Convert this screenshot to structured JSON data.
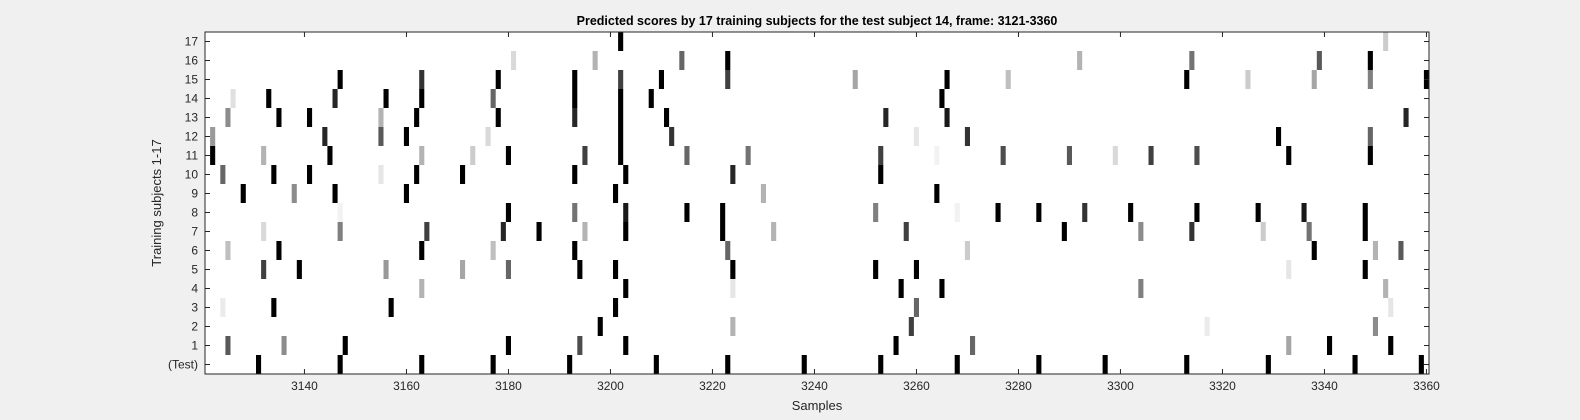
{
  "chart_data": {
    "type": "heatmap",
    "title": "Predicted scores by 17 training subjects for the test subject 14, frame: 3121-3360",
    "xlabel": "Samples",
    "ylabel": "Training subjects 1-17",
    "xlim": [
      3121,
      3360
    ],
    "x_ticks": [
      3140,
      3160,
      3180,
      3200,
      3220,
      3240,
      3260,
      3280,
      3300,
      3320,
      3340,
      3360
    ],
    "y_tick_labels": [
      "(Test)",
      "1",
      "2",
      "3",
      "4",
      "5",
      "6",
      "7",
      "8",
      "9",
      "10",
      "11",
      "12",
      "13",
      "14",
      "15",
      "16",
      "17"
    ],
    "colormap": "gray (white = 0, black = 1)",
    "grid": false,
    "rows": [
      {
        "label": "(Test)",
        "points": [
          [
            3131,
            1
          ],
          [
            3147,
            1
          ],
          [
            3163,
            1
          ],
          [
            3177,
            1
          ],
          [
            3192,
            1
          ],
          [
            3209,
            1
          ],
          [
            3223,
            1
          ],
          [
            3238,
            1
          ],
          [
            3253,
            1
          ],
          [
            3268,
            1
          ],
          [
            3284,
            1
          ],
          [
            3297,
            1
          ],
          [
            3313,
            1
          ],
          [
            3329,
            1
          ],
          [
            3346,
            1
          ],
          [
            3359,
            1
          ]
        ]
      },
      {
        "label": "1",
        "points": [
          [
            3125,
            0.65
          ],
          [
            3136,
            0.45
          ],
          [
            3148,
            1
          ],
          [
            3180,
            1
          ],
          [
            3194,
            0.7
          ],
          [
            3203,
            1
          ],
          [
            3256,
            1
          ],
          [
            3271,
            0.6
          ],
          [
            3333,
            0.35
          ],
          [
            3341,
            1
          ],
          [
            3353,
            1
          ]
        ]
      },
      {
        "label": "2",
        "points": [
          [
            3198,
            1
          ],
          [
            3224,
            0.3
          ],
          [
            3259,
            0.75
          ],
          [
            3317,
            0.08
          ],
          [
            3350,
            0.45
          ]
        ]
      },
      {
        "label": "3",
        "points": [
          [
            3124,
            0.08
          ],
          [
            3134,
            1
          ],
          [
            3157,
            1
          ],
          [
            3201,
            1
          ],
          [
            3260,
            0.6
          ],
          [
            3353,
            0.1
          ]
        ]
      },
      {
        "label": "4",
        "points": [
          [
            3163,
            0.3
          ],
          [
            3203,
            1
          ],
          [
            3224,
            0.1
          ],
          [
            3257,
            1
          ],
          [
            3265,
            1
          ],
          [
            3304,
            0.5
          ],
          [
            3352,
            0.3
          ]
        ]
      },
      {
        "label": "5",
        "points": [
          [
            3132,
            0.75
          ],
          [
            3139,
            1
          ],
          [
            3156,
            0.4
          ],
          [
            3171,
            0.35
          ],
          [
            3180,
            0.6
          ],
          [
            3194,
            1
          ],
          [
            3201,
            1
          ],
          [
            3224,
            1
          ],
          [
            3252,
            1
          ],
          [
            3260,
            1
          ],
          [
            3333,
            0.1
          ],
          [
            3348,
            1
          ]
        ]
      },
      {
        "label": "6",
        "points": [
          [
            3125,
            0.25
          ],
          [
            3135,
            1
          ],
          [
            3163,
            1
          ],
          [
            3177,
            0.25
          ],
          [
            3193,
            1
          ],
          [
            3223,
            0.6
          ],
          [
            3270,
            0.2
          ],
          [
            3338,
            1
          ],
          [
            3350,
            0.3
          ],
          [
            3355,
            0.65
          ]
        ]
      },
      {
        "label": "7",
        "points": [
          [
            3132,
            0.15
          ],
          [
            3147,
            0.5
          ],
          [
            3164,
            0.75
          ],
          [
            3179,
            0.85
          ],
          [
            3186,
            1
          ],
          [
            3195,
            0.3
          ],
          [
            3203,
            1
          ],
          [
            3222,
            1
          ],
          [
            3232,
            0.3
          ],
          [
            3258,
            0.75
          ],
          [
            3289,
            1
          ],
          [
            3304,
            0.45
          ],
          [
            3314,
            0.8
          ],
          [
            3328,
            0.2
          ],
          [
            3337,
            0.55
          ],
          [
            3348,
            1
          ]
        ]
      },
      {
        "label": "8",
        "points": [
          [
            3147,
            0.05
          ],
          [
            3180,
            1
          ],
          [
            3193,
            0.55
          ],
          [
            3203,
            0.9
          ],
          [
            3215,
            1
          ],
          [
            3222,
            1
          ],
          [
            3252,
            0.5
          ],
          [
            3268,
            0.05
          ],
          [
            3276,
            1
          ],
          [
            3284,
            1
          ],
          [
            3293,
            0.8
          ],
          [
            3302,
            1
          ],
          [
            3315,
            1
          ],
          [
            3327,
            1
          ],
          [
            3336,
            0.9
          ],
          [
            3348,
            1
          ]
        ]
      },
      {
        "label": "9",
        "points": [
          [
            3128,
            1
          ],
          [
            3138,
            0.45
          ],
          [
            3146,
            1
          ],
          [
            3160,
            1
          ],
          [
            3201,
            1
          ],
          [
            3230,
            0.3
          ],
          [
            3264,
            1
          ]
        ]
      },
      {
        "label": "10",
        "points": [
          [
            3124,
            0.6
          ],
          [
            3134,
            1
          ],
          [
            3141,
            1
          ],
          [
            3155,
            0.1
          ],
          [
            3162,
            1
          ],
          [
            3171,
            1
          ],
          [
            3193,
            1
          ],
          [
            3203,
            1
          ],
          [
            3224,
            0.85
          ],
          [
            3253,
            1
          ]
        ]
      },
      {
        "label": "11",
        "points": [
          [
            3122,
            1
          ],
          [
            3132,
            0.3
          ],
          [
            3145,
            1
          ],
          [
            3163,
            0.3
          ],
          [
            3173,
            0.2
          ],
          [
            3180,
            1
          ],
          [
            3195,
            0.75
          ],
          [
            3202,
            1
          ],
          [
            3215,
            0.6
          ],
          [
            3227,
            0.55
          ],
          [
            3253,
            0.75
          ],
          [
            3264,
            0.05
          ],
          [
            3277,
            0.7
          ],
          [
            3290,
            0.65
          ],
          [
            3299,
            0.15
          ],
          [
            3306,
            0.75
          ],
          [
            3315,
            0.7
          ],
          [
            3333,
            1
          ],
          [
            3349,
            1
          ]
        ]
      },
      {
        "label": "12",
        "points": [
          [
            3122,
            0.4
          ],
          [
            3144,
            0.85
          ],
          [
            3155,
            0.65
          ],
          [
            3160,
            1
          ],
          [
            3176,
            0.15
          ],
          [
            3202,
            1
          ],
          [
            3212,
            0.8
          ],
          [
            3260,
            0.1
          ],
          [
            3270,
            0.8
          ],
          [
            3331,
            1
          ],
          [
            3349,
            0.6
          ]
        ]
      },
      {
        "label": "13",
        "points": [
          [
            3125,
            0.45
          ],
          [
            3135,
            1
          ],
          [
            3141,
            1
          ],
          [
            3155,
            0.3
          ],
          [
            3162,
            1
          ],
          [
            3178,
            1
          ],
          [
            3193,
            0.85
          ],
          [
            3202,
            1
          ],
          [
            3211,
            1
          ],
          [
            3254,
            0.85
          ],
          [
            3266,
            0.9
          ],
          [
            3356,
            0.85
          ]
        ]
      },
      {
        "label": "14",
        "points": [
          [
            3126,
            0.12
          ],
          [
            3133,
            1
          ],
          [
            3146,
            0.85
          ],
          [
            3156,
            1
          ],
          [
            3163,
            1
          ],
          [
            3177,
            0.6
          ],
          [
            3193,
            1
          ],
          [
            3202,
            1
          ],
          [
            3208,
            1
          ],
          [
            3265,
            1
          ]
        ]
      },
      {
        "label": "15",
        "points": [
          [
            3147,
            1
          ],
          [
            3163,
            0.8
          ],
          [
            3178,
            1
          ],
          [
            3193,
            1
          ],
          [
            3202,
            0.75
          ],
          [
            3210,
            1
          ],
          [
            3223,
            0.75
          ],
          [
            3248,
            0.35
          ],
          [
            3266,
            1
          ],
          [
            3278,
            0.25
          ],
          [
            3313,
            1
          ],
          [
            3325,
            0.2
          ],
          [
            3338,
            0.35
          ],
          [
            3349,
            0.5
          ],
          [
            3360,
            1
          ]
        ]
      },
      {
        "label": "16",
        "points": [
          [
            3181,
            0.15
          ],
          [
            3197,
            0.3
          ],
          [
            3214,
            0.6
          ],
          [
            3223,
            1
          ],
          [
            3292,
            0.3
          ],
          [
            3314,
            0.55
          ],
          [
            3339,
            0.65
          ],
          [
            3349,
            1
          ]
        ]
      },
      {
        "label": "17",
        "points": [
          [
            3202,
            1
          ],
          [
            3352,
            0.2
          ]
        ]
      }
    ]
  }
}
